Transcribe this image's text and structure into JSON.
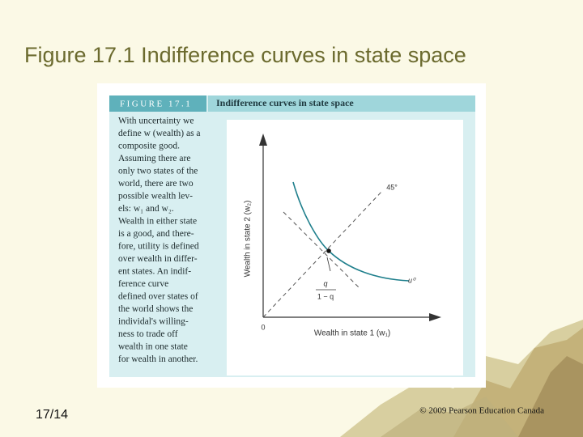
{
  "header": {
    "title": "Figure 17.1 Indifference curves in state space"
  },
  "figure": {
    "label": "FIGURE 17.1",
    "heading": "Indifference curves in state space",
    "description": [
      "With uncertainty we",
      "define w (wealth) as a",
      "composite good.",
      "Assuming there are",
      "only two states of the",
      "world, there are two",
      "possible wealth lev-",
      "els: w₁ and w₂.",
      "Wealth in either state",
      "is a good, and there-",
      "fore, utility is defined",
      "over wealth in differ-",
      "ent states. An indif-",
      "ference curve",
      "defined over states of",
      "the world shows the",
      "individal's willing-",
      "ness to trade off",
      "wealth in one state",
      "for wealth in another."
    ],
    "diagram": {
      "y_axis_label": "Wealth in state 2 (w₂)",
      "x_axis_label": "Wealth in state 1 (w₁)",
      "origin_label": "0",
      "line_label": "45°",
      "curve_label": "u⁰",
      "slope_numerator": "q",
      "slope_denominator": "1 − q"
    }
  },
  "footer": {
    "page": "17/14",
    "copyright": "© 2009 Pearson Education Canada"
  }
}
